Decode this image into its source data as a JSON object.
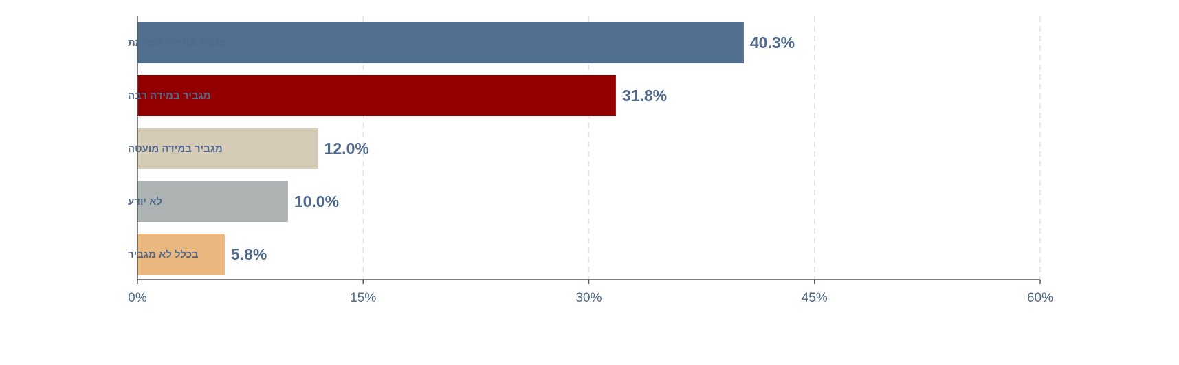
{
  "chart_data": {
    "type": "bar",
    "orientation": "horizontal",
    "categories": [
      "מגביר במידה מסוימת",
      "מגביר במידה רבה",
      "מגביר במידה מועטה",
      "לא יודע",
      "בכלל לא מגביר"
    ],
    "values": [
      40.3,
      31.8,
      12.0,
      10.0,
      5.8
    ],
    "data_labels": [
      "40.3%",
      "31.8%",
      "12.0%",
      "10.0%",
      "5.8%"
    ],
    "colors": [
      "#517090",
      "#940000",
      "#d6cbb7",
      "#adb3b3",
      "#eab77f"
    ],
    "xlim": [
      0,
      60
    ],
    "xticks": [
      0,
      15,
      30,
      45,
      60
    ],
    "xtick_labels": [
      "0%",
      "15%",
      "30%",
      "45%",
      "60%"
    ],
    "grid": "vertical dashed",
    "text_color": "#4f6a8c"
  }
}
